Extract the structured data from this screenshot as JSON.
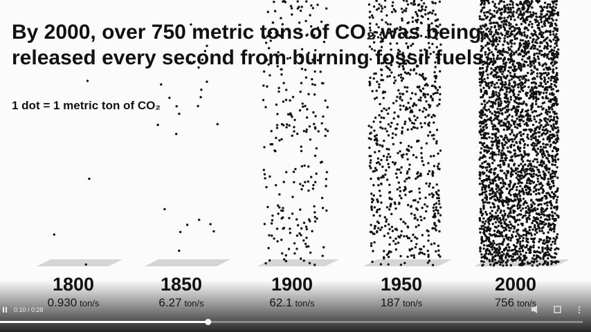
{
  "title_lines": [
    "By 2000, over 750 metric tons of CO₂ was being",
    "released every second from burning fossil fuels."
  ],
  "legend": "1 dot = 1 metric ton of CO₂",
  "columns": [
    {
      "year": "1800",
      "rate": 0.93,
      "rate_label": "0.930",
      "unit": "ton/s"
    },
    {
      "year": "1850",
      "rate": 6.27,
      "rate_label": "6.27",
      "unit": "ton/s"
    },
    {
      "year": "1900",
      "rate": 62.1,
      "rate_label": "62.1",
      "unit": "ton/s"
    },
    {
      "year": "1950",
      "rate": 187,
      "rate_label": "187",
      "unit": "ton/s"
    },
    {
      "year": "2000",
      "rate": 756,
      "rate_label": "756",
      "unit": "ton/s"
    }
  ],
  "player": {
    "time": "0:10 / 0:28"
  }
}
